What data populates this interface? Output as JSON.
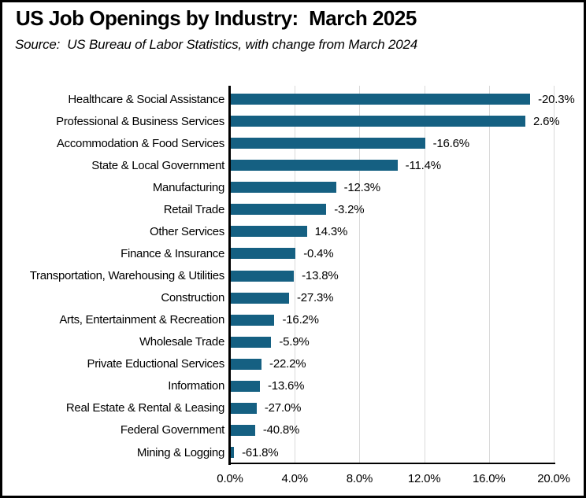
{
  "chart_data": {
    "type": "bar",
    "orientation": "horizontal",
    "title": "US Job Openings by Industry:  March 2025",
    "subtitle": "Source:  US Bureau of Labor Statistics, with change from March 2024",
    "xlabel": "",
    "ylabel": "",
    "categories": [
      "Healthcare & Social Assistance",
      "Professional & Business Services",
      "Accommodation & Food Services",
      "State & Local Government",
      "Manufacturing",
      "Retail Trade",
      "Other Services",
      "Finance & Insurance",
      "Transportation, Warehousing & Utilities",
      "Construction",
      "Arts, Entertainment & Recreation",
      "Wholesale Trade",
      "Private Eductional Services",
      "Information",
      "Real Estate & Rental & Leasing",
      "Federal Government",
      "Mining & Logging"
    ],
    "values": [
      18.5,
      18.2,
      12.0,
      10.3,
      6.5,
      5.9,
      4.7,
      4.0,
      3.9,
      3.6,
      2.7,
      2.5,
      1.9,
      1.8,
      1.6,
      1.5,
      0.2
    ],
    "data_labels": [
      "-20.3%",
      "2.6%",
      "-16.6%",
      "-11.4%",
      "-12.3%",
      "-3.2%",
      "14.3%",
      "-0.4%",
      "-13.8%",
      "-27.3%",
      "-16.2%",
      "-5.9%",
      "-22.2%",
      "-13.6%",
      "-27.0%",
      "-40.8%",
      "-61.8%"
    ],
    "xlim": [
      0,
      20
    ],
    "x_tick_values": [
      0,
      4,
      8,
      12,
      16,
      20
    ],
    "x_tick_labels": [
      "0.0%",
      "4.0%",
      "8.0%",
      "12.0%",
      "16.0%",
      "20.0%"
    ],
    "grid": "vertical",
    "legend": "none",
    "colors": {
      "bar": "#156082",
      "gridline": "#d9d9d9",
      "axis": "#000000",
      "text": "#000000",
      "background": "#ffffff",
      "frame_border": "#000000"
    }
  }
}
